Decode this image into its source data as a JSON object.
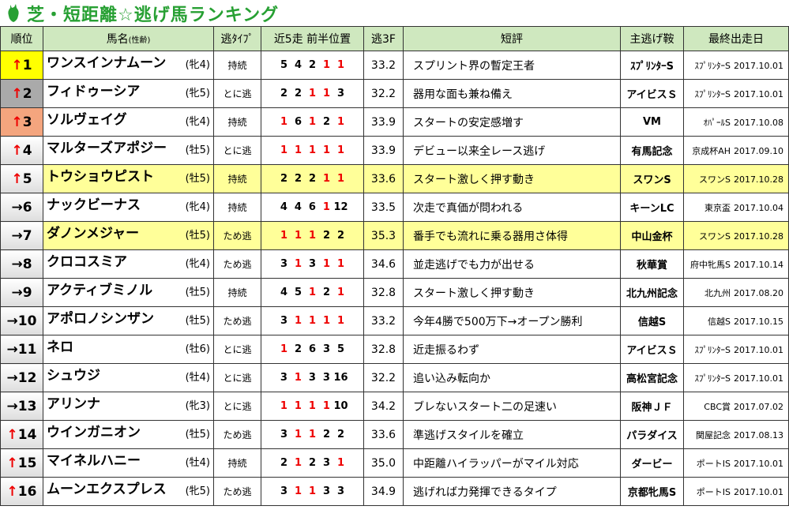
{
  "title": "芝・短距離☆逃げ馬ランキング",
  "table": {
    "headers": [
      "順位",
      "馬名",
      "(性齢)",
      "逃ﾀｲﾌﾟ",
      "近5走 前半位置",
      "逃3F",
      "短評",
      "主逃げ鞍",
      "最終出走日"
    ],
    "rows": [
      {
        "arrow": "↑",
        "rank": 1,
        "name": "ワンスインナムーン",
        "sexage": "(牝4)",
        "type": "持続",
        "pos": [
          5,
          4,
          2,
          1,
          1
        ],
        "f3": "33.2",
        "comment": "スプリント界の暫定王者",
        "main": "ｽﾌﾟﾘﾝﾀｰS",
        "race": "ｽﾌﾟﾘﾝﾀｰS",
        "date": "2017.10.01"
      },
      {
        "arrow": "↑",
        "rank": 2,
        "name": "フィドゥーシア",
        "sexage": "(牝5)",
        "type": "とに逃",
        "pos": [
          2,
          2,
          1,
          1,
          3
        ],
        "f3": "32.2",
        "comment": "器用な面も兼ね備え",
        "main": "アイビスＳ",
        "race": "ｽﾌﾟﾘﾝﾀｰS",
        "date": "2017.10.01"
      },
      {
        "arrow": "↑",
        "rank": 3,
        "name": "ソルヴェイグ",
        "sexage": "(牝4)",
        "type": "持続",
        "pos": [
          1,
          6,
          1,
          2,
          1
        ],
        "f3": "33.9",
        "comment": "スタートの安定感増す",
        "main": "VM",
        "race": "ｵﾊﾟｰﾙS",
        "date": "2017.10.08"
      },
      {
        "arrow": "↑",
        "rank": 4,
        "name": "マルターズアポジー",
        "sexage": "(牡5)",
        "type": "とに逃",
        "pos": [
          1,
          1,
          1,
          1,
          1
        ],
        "f3": "33.9",
        "comment": "デビュー以来全レース逃げ",
        "main": "有馬記念",
        "race": "京成杯AH",
        "date": "2017.09.10"
      },
      {
        "arrow": "↑",
        "rank": 5,
        "name": "トウショウピスト",
        "sexage": "(牡5)",
        "type": "持続",
        "pos": [
          2,
          2,
          2,
          1,
          1
        ],
        "f3": "33.6",
        "comment": "スタート激しく押す動き",
        "main": "スワンS",
        "race": "スワンS",
        "date": "2017.10.28"
      },
      {
        "arrow": "→",
        "rank": 6,
        "name": "ナックビーナス",
        "sexage": "(牝4)",
        "type": "持続",
        "pos": [
          4,
          4,
          6,
          1,
          12
        ],
        "f3": "33.5",
        "comment": "次走で真価が問われる",
        "main": "キーンLC",
        "race": "東京盃",
        "date": "2017.10.04"
      },
      {
        "arrow": "→",
        "rank": 7,
        "name": "ダノンメジャー",
        "sexage": "(牡5)",
        "type": "ため逃",
        "pos": [
          1,
          1,
          1,
          2,
          2
        ],
        "f3": "35.3",
        "comment": "番手でも流れに乗る器用さ体得",
        "main": "中山金杯",
        "race": "スワンS",
        "date": "2017.10.28"
      },
      {
        "arrow": "→",
        "rank": 8,
        "name": "クロコスミア",
        "sexage": "(牝4)",
        "type": "ため逃",
        "pos": [
          3,
          1,
          3,
          1,
          1
        ],
        "f3": "34.6",
        "comment": "並走逃げでも力が出せる",
        "main": "秋華賞",
        "race": "府中牝馬S",
        "date": "2017.10.14"
      },
      {
        "arrow": "→",
        "rank": 9,
        "name": "アクティブミノル",
        "sexage": "(牡5)",
        "type": "持続",
        "pos": [
          4,
          5,
          1,
          2,
          1
        ],
        "f3": "32.8",
        "comment": "スタート激しく押す動き",
        "main": "北九州記念",
        "race": "北九州",
        "date": "2017.08.20"
      },
      {
        "arrow": "→",
        "rank": 10,
        "name": "アポロノシンザン",
        "sexage": "(牡5)",
        "type": "ため逃",
        "pos": [
          3,
          1,
          1,
          1,
          1
        ],
        "f3": "33.2",
        "comment": "今年4勝で500万下→オープン勝利",
        "main": "信越S",
        "race": "信越S",
        "date": "2017.10.15"
      },
      {
        "arrow": "→",
        "rank": 11,
        "name": "ネロ",
        "sexage": "(牡6)",
        "type": "とに逃",
        "pos": [
          1,
          2,
          6,
          3,
          5
        ],
        "f3": "32.8",
        "comment": "近走振るわず",
        "main": "アイビスＳ",
        "race": "ｽﾌﾟﾘﾝﾀｰS",
        "date": "2017.10.01"
      },
      {
        "arrow": "→",
        "rank": 12,
        "name": "シュウジ",
        "sexage": "(牡4)",
        "type": "とに逃",
        "pos": [
          3,
          1,
          3,
          3,
          16
        ],
        "f3": "32.2",
        "comment": "追い込み転向か",
        "main": "高松宮記念",
        "race": "ｽﾌﾟﾘﾝﾀｰS",
        "date": "2017.10.01"
      },
      {
        "arrow": "→",
        "rank": 13,
        "name": "アリンナ",
        "sexage": "(牝3)",
        "type": "とに逃",
        "pos": [
          1,
          1,
          1,
          1,
          10
        ],
        "f3": "34.2",
        "comment": "ブレないスタート二の足速い",
        "main": "阪神ＪＦ",
        "race": "CBC賞",
        "date": "2017.07.02"
      },
      {
        "arrow": "↑",
        "rank": 14,
        "name": "ウインガニオン",
        "sexage": "(牡5)",
        "type": "ため逃",
        "pos": [
          3,
          1,
          1,
          2,
          2
        ],
        "f3": "33.6",
        "comment": "準逃げスタイルを確立",
        "main": "パラダイス",
        "race": "関屋記念",
        "date": "2017.08.13"
      },
      {
        "arrow": "↑",
        "rank": 15,
        "name": "マイネルハニー",
        "sexage": "(牡4)",
        "type": "持続",
        "pos": [
          2,
          1,
          2,
          3,
          1
        ],
        "f3": "35.0",
        "comment": "中距離ハイラッパーがマイル対応",
        "main": "ダービー",
        "race": "ポートIS",
        "date": "2017.10.01"
      },
      {
        "arrow": "↑",
        "rank": 16,
        "name": "ムーンエクスプレス",
        "sexage": "(牝5)",
        "type": "ため逃",
        "pos": [
          3,
          1,
          1,
          3,
          3
        ],
        "f3": "34.9",
        "comment": "逃げれば力発揮できるタイプ",
        "main": "京都牝馬S",
        "race": "ポートIS",
        "date": "2017.10.01"
      }
    ]
  }
}
